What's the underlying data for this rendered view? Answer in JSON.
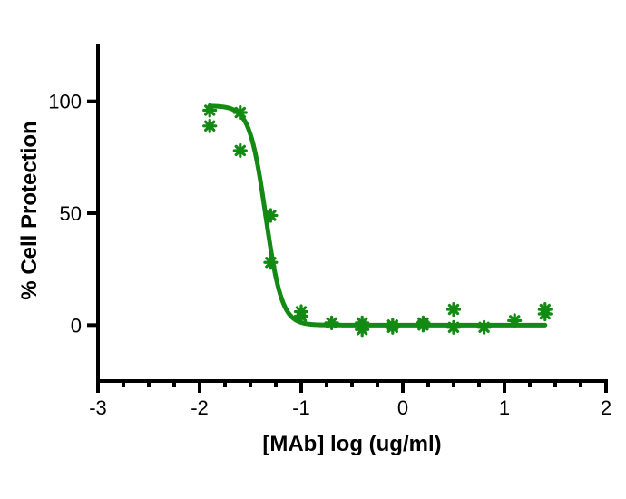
{
  "chart_data": {
    "type": "scatter",
    "title": "",
    "xlabel": "[MAb] log (ug/ml)",
    "ylabel": "% Cell Protection",
    "xlim": [
      -3,
      2
    ],
    "ylim": [
      -25,
      125
    ],
    "x_ticks": [
      "-3",
      "-2",
      "-1",
      "0",
      "1",
      "2"
    ],
    "y_ticks": [
      "0",
      "50",
      "100"
    ],
    "grid": false,
    "colors": {
      "series": "#138a13",
      "axis": "#000000"
    },
    "series": [
      {
        "type": "scatter",
        "marker": "asterisk",
        "points": [
          [
            -1.9,
            96
          ],
          [
            -1.9,
            89
          ],
          [
            -1.6,
            95
          ],
          [
            -1.6,
            78
          ],
          [
            -1.3,
            49
          ],
          [
            -1.3,
            28
          ],
          [
            -1.0,
            6
          ],
          [
            -1.0,
            4
          ],
          [
            -0.7,
            1
          ],
          [
            -0.4,
            1
          ],
          [
            -0.4,
            -2
          ],
          [
            -0.1,
            0
          ],
          [
            -0.1,
            -1
          ],
          [
            0.2,
            1
          ],
          [
            0.2,
            0
          ],
          [
            0.5,
            7
          ],
          [
            0.5,
            -1
          ],
          [
            0.8,
            -1
          ],
          [
            1.1,
            2
          ],
          [
            1.4,
            7
          ],
          [
            1.4,
            5
          ]
        ]
      },
      {
        "type": "line",
        "fit": "sigmoid",
        "top": 98,
        "bottom": 0,
        "ec50_log": -1.35,
        "hill": 5.5,
        "x_range": [
          -1.9,
          1.4
        ]
      }
    ]
  }
}
